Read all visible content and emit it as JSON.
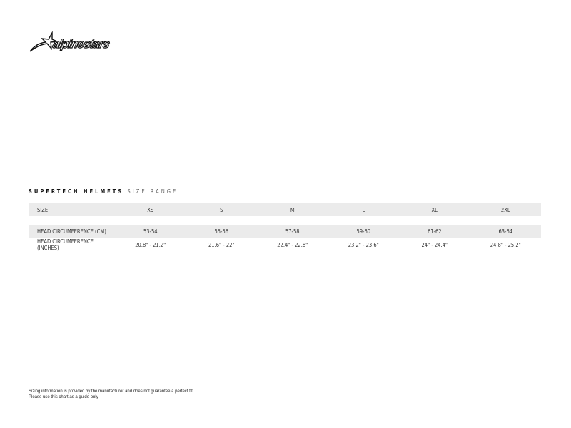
{
  "brand": {
    "name": "alpinestars"
  },
  "title": {
    "bold": "SUPERTECH HELMETS",
    "light": "SIZE RANGE"
  },
  "table": {
    "header": {
      "label": "SIZE",
      "values": [
        "XS",
        "S",
        "M",
        "L",
        "XL",
        "2XL"
      ]
    },
    "rows": [
      {
        "label": "HEAD CIRCUMFERENCE (CM)",
        "values": [
          "53-54",
          "55-56",
          "57-58",
          "59-60",
          "61-62",
          "63-64"
        ]
      },
      {
        "label": "HEAD CIRCUMFERENCE (INCHES)",
        "values": [
          "20.8\" - 21.2\"",
          "21.6\" - 22\"",
          "22.4\" - 22.8\"",
          "23.2\" - 23.6\"",
          "24\" - 24.4\"",
          "24.8\" - 25.2\""
        ]
      }
    ]
  },
  "footer": {
    "line1": "Sizing information is provided by the manufacturer and does not guarantee a perfect fit.",
    "line2": "Please use this chart as a guide only"
  }
}
